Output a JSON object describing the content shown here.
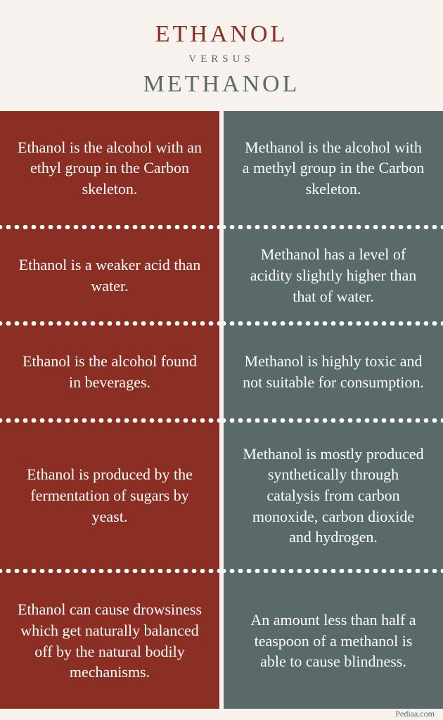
{
  "colors": {
    "background": "#f7f2ee",
    "left_bg": "#8b2f25",
    "right_bg": "#5a6a69",
    "left_text": "#8b2f25",
    "right_text": "#5a6a69",
    "versus": "#5a6a69",
    "cell_text": "#ffffff",
    "attribution": "#5a6a69"
  },
  "header": {
    "title_top": "ETHANOL",
    "versus": "VERSUS",
    "title_bottom": "METHANOL"
  },
  "rows": [
    {
      "left": "Ethanol is the alcohol with an ethyl group in the Carbon skeleton.",
      "right": "Methanol is the alcohol with a methyl group in the Carbon skeleton."
    },
    {
      "left": "Ethanol is a weaker acid than water.",
      "right": "Methanol has a level of acidity slightly higher than that of water."
    },
    {
      "left": "Ethanol is the alcohol found in beverages.",
      "right": "Methanol is highly toxic and not suitable for consumption."
    },
    {
      "left": "Ethanol is produced by the fermentation of sugars by yeast.",
      "right": "Methanol is mostly produced synthetically through catalysis from carbon monoxide, carbon dioxide and hydrogen."
    },
    {
      "left": "Ethanol can cause drowsiness which get naturally balanced off by the natural bodily mechanisms.",
      "right": "An amount less than half a teaspoon of a methanol is able to cause blindness."
    }
  ],
  "attribution": "Pediaa.com",
  "row_flex": [
    1.05,
    0.85,
    0.85,
    1.35,
    1.25
  ]
}
